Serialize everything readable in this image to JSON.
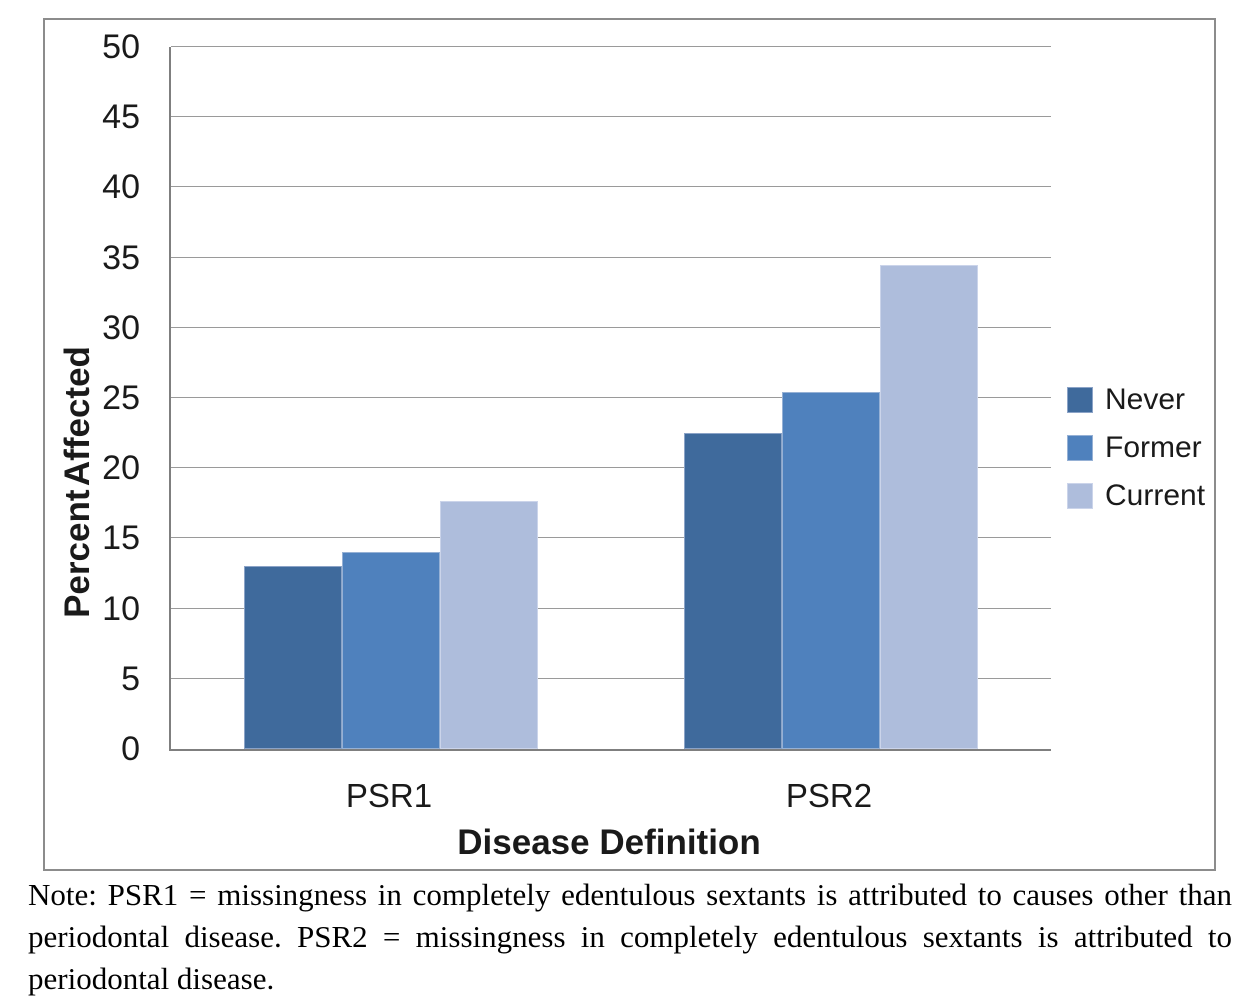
{
  "chart_data": {
    "type": "bar",
    "title": "",
    "categories": [
      "PSR1",
      "PSR2"
    ],
    "series": [
      {
        "name": "Never",
        "color": "#3F6A9C",
        "edge": "#8BA3C7",
        "values": [
          13.0,
          22.5
        ]
      },
      {
        "name": "Former",
        "color": "#4F81BD",
        "edge": "#96B1D5",
        "values": [
          14.0,
          25.4
        ]
      },
      {
        "name": "Current",
        "color": "#AEBDDC",
        "edge": "#CBD4EA",
        "values": [
          17.7,
          34.5
        ]
      }
    ],
    "xlabel": "Disease Definition",
    "ylabel": "Percent Affected",
    "ylim": [
      0,
      50
    ],
    "ytick_step": 5,
    "yticks": [
      0,
      5,
      10,
      15,
      20,
      25,
      30,
      35,
      40,
      45,
      50
    ],
    "grid": true,
    "legend_position": "right",
    "colors": {
      "gridline": "#9A9A9A",
      "axis": "#7F7F7F",
      "chart_border": "#8C8C8C",
      "text": "#1A1A1A"
    }
  },
  "note": {
    "lines": [
      "Note: PSR1 = missingness in completely edentulous sextants is attributed to causes other than",
      "periodontal disease. PSR2 = missingness in completely edentulous sextants is attributed to",
      "periodontal disease."
    ]
  }
}
